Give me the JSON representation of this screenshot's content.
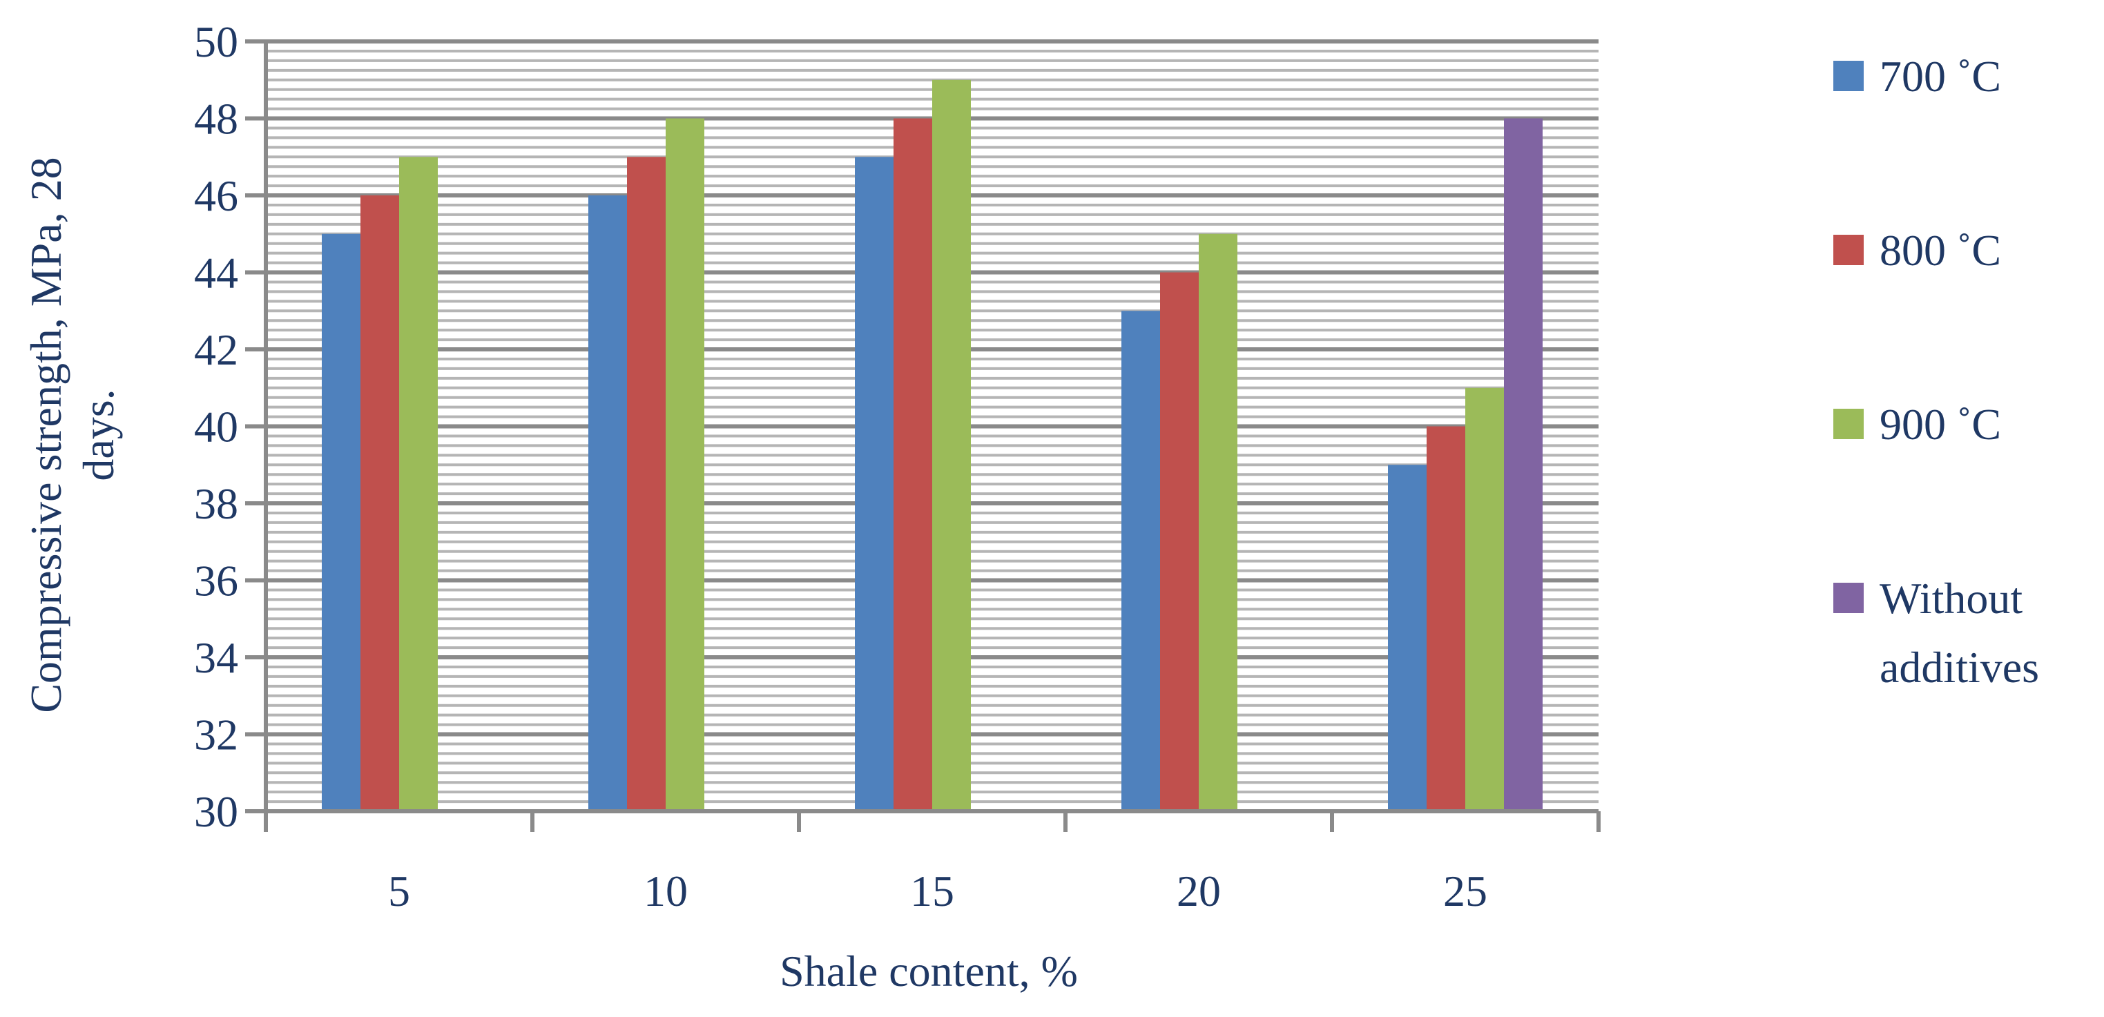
{
  "chart_data": {
    "type": "bar",
    "title": "",
    "xlabel": "Shale content, %",
    "ylabel_lines": [
      "Compressive strength, MPa, 28",
      "days."
    ],
    "categories": [
      "5",
      "10",
      "15",
      "20",
      "25"
    ],
    "ylim": [
      30,
      50
    ],
    "yticks": [
      "30",
      "32",
      "34",
      "36",
      "38",
      "40",
      "42",
      "44",
      "46",
      "48",
      "50"
    ],
    "grid": true,
    "legend_position": "right",
    "series": [
      {
        "name": "700 ˚C",
        "color": "#4f81bd",
        "values": [
          45,
          46,
          47,
          43,
          39
        ]
      },
      {
        "name": "800 ˚C",
        "color": "#c0504d",
        "values": [
          46,
          47,
          48,
          44,
          40
        ]
      },
      {
        "name": "900 ˚C",
        "color": "#9bbb59",
        "values": [
          47,
          48,
          49,
          45,
          41
        ]
      },
      {
        "name_lines": [
          "Without",
          "additives"
        ],
        "color": "#8064a2",
        "values": [
          null,
          null,
          null,
          null,
          48
        ]
      }
    ]
  }
}
